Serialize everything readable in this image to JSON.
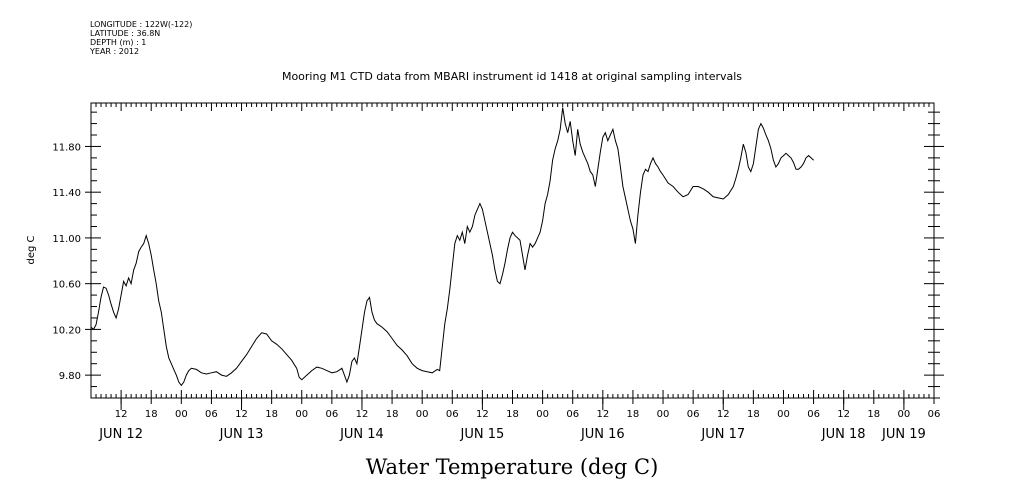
{
  "header": {
    "lines": [
      "LONGITUDE : 122W(-122)",
      "LATITUDE : 36.8N",
      "DEPTH (m) : 1",
      "YEAR : 2012"
    ]
  },
  "chart_data": {
    "type": "line",
    "title": "Mooring M1 CTD data from MBARI instrument id 1418 at original sampling intervals",
    "bottom_title": "Water Temperature (deg C)",
    "ylabel": "deg C",
    "xlabel": "",
    "ylim": [
      9.6,
      12.18
    ],
    "yticks": [
      9.8,
      10.2,
      10.6,
      11.0,
      11.4,
      11.8
    ],
    "ytick_labels": [
      "9.80",
      "10.20",
      "10.60",
      "11.00",
      "11.40",
      "11.80"
    ],
    "xlim_hours_from_jun11_00": [
      30,
      198
    ],
    "xticks": [
      {
        "t": 36,
        "label": "12"
      },
      {
        "t": 42,
        "label": "18"
      },
      {
        "t": 48,
        "label": "00"
      },
      {
        "t": 54,
        "label": "06"
      },
      {
        "t": 60,
        "label": "12"
      },
      {
        "t": 66,
        "label": "18"
      },
      {
        "t": 72,
        "label": "00"
      },
      {
        "t": 78,
        "label": "06"
      },
      {
        "t": 84,
        "label": "12"
      },
      {
        "t": 90,
        "label": "18"
      },
      {
        "t": 96,
        "label": "00"
      },
      {
        "t": 102,
        "label": "06"
      },
      {
        "t": 108,
        "label": "12"
      },
      {
        "t": 114,
        "label": "18"
      },
      {
        "t": 120,
        "label": "00"
      },
      {
        "t": 126,
        "label": "06"
      },
      {
        "t": 132,
        "label": "12"
      },
      {
        "t": 138,
        "label": "18"
      },
      {
        "t": 144,
        "label": "00"
      },
      {
        "t": 150,
        "label": "06"
      },
      {
        "t": 156,
        "label": "12"
      },
      {
        "t": 162,
        "label": "18"
      },
      {
        "t": 168,
        "label": "00"
      },
      {
        "t": 174,
        "label": "06"
      },
      {
        "t": 180,
        "label": "12"
      },
      {
        "t": 186,
        "label": "18"
      },
      {
        "t": 192,
        "label": "00"
      },
      {
        "t": 198,
        "label": "06"
      }
    ],
    "day_labels": [
      {
        "t": 36,
        "label": "JUN 12"
      },
      {
        "t": 60,
        "label": "JUN 13"
      },
      {
        "t": 84,
        "label": "JUN 14"
      },
      {
        "t": 108,
        "label": "JUN 15"
      },
      {
        "t": 132,
        "label": "JUN 16"
      },
      {
        "t": 156,
        "label": "JUN 17"
      },
      {
        "t": 180,
        "label": "JUN 18"
      },
      {
        "t": 192,
        "label": "JUN 19"
      }
    ],
    "series": [
      {
        "points": [
          [
            30,
            10.22
          ],
          [
            30.5,
            10.2
          ],
          [
            31,
            10.24
          ],
          [
            31.5,
            10.35
          ],
          [
            32,
            10.48
          ],
          [
            32.5,
            10.57
          ],
          [
            33,
            10.56
          ],
          [
            33.5,
            10.5
          ],
          [
            34,
            10.42
          ],
          [
            34.5,
            10.35
          ],
          [
            35,
            10.3
          ],
          [
            35.5,
            10.38
          ],
          [
            36,
            10.5
          ],
          [
            36.5,
            10.62
          ],
          [
            37,
            10.58
          ],
          [
            37.5,
            10.65
          ],
          [
            38,
            10.6
          ],
          [
            38.5,
            10.72
          ],
          [
            39,
            10.78
          ],
          [
            39.5,
            10.88
          ],
          [
            40,
            10.92
          ],
          [
            40.5,
            10.95
          ],
          [
            41,
            11.02
          ],
          [
            41.5,
            10.95
          ],
          [
            42,
            10.85
          ],
          [
            42.5,
            10.72
          ],
          [
            43,
            10.6
          ],
          [
            43.5,
            10.45
          ],
          [
            44,
            10.35
          ],
          [
            44.5,
            10.2
          ],
          [
            45,
            10.05
          ],
          [
            45.5,
            9.95
          ],
          [
            46,
            9.9
          ],
          [
            46.5,
            9.85
          ],
          [
            47,
            9.8
          ],
          [
            47.5,
            9.74
          ],
          [
            48,
            9.71
          ],
          [
            48.5,
            9.74
          ],
          [
            49,
            9.8
          ],
          [
            49.5,
            9.84
          ],
          [
            50,
            9.86
          ],
          [
            51,
            9.85
          ],
          [
            52,
            9.82
          ],
          [
            53,
            9.81
          ],
          [
            54,
            9.82
          ],
          [
            55,
            9.83
          ],
          [
            56,
            9.8
          ],
          [
            57,
            9.79
          ],
          [
            58,
            9.82
          ],
          [
            59,
            9.86
          ],
          [
            60,
            9.92
          ],
          [
            61,
            9.98
          ],
          [
            62,
            10.05
          ],
          [
            63,
            10.12
          ],
          [
            64,
            10.17
          ],
          [
            65,
            10.16
          ],
          [
            66,
            10.1
          ],
          [
            67,
            10.07
          ],
          [
            68,
            10.03
          ],
          [
            69,
            9.98
          ],
          [
            70,
            9.93
          ],
          [
            71,
            9.86
          ],
          [
            71.5,
            9.78
          ],
          [
            72,
            9.76
          ],
          [
            73,
            9.8
          ],
          [
            74,
            9.84
          ],
          [
            75,
            9.87
          ],
          [
            76,
            9.86
          ],
          [
            77,
            9.84
          ],
          [
            78,
            9.82
          ],
          [
            79,
            9.83
          ],
          [
            80,
            9.86
          ],
          [
            80.5,
            9.8
          ],
          [
            81,
            9.74
          ],
          [
            81.5,
            9.8
          ],
          [
            82,
            9.92
          ],
          [
            82.5,
            9.95
          ],
          [
            83,
            9.9
          ],
          [
            83.5,
            10.05
          ],
          [
            84,
            10.2
          ],
          [
            84.5,
            10.35
          ],
          [
            85,
            10.45
          ],
          [
            85.5,
            10.48
          ],
          [
            86,
            10.35
          ],
          [
            86.5,
            10.28
          ],
          [
            87,
            10.25
          ],
          [
            88,
            10.22
          ],
          [
            89,
            10.18
          ],
          [
            90,
            10.12
          ],
          [
            91,
            10.06
          ],
          [
            92,
            10.02
          ],
          [
            93,
            9.97
          ],
          [
            94,
            9.9
          ],
          [
            95,
            9.86
          ],
          [
            96,
            9.84
          ],
          [
            97,
            9.83
          ],
          [
            98,
            9.82
          ],
          [
            99,
            9.85
          ],
          [
            99.5,
            9.84
          ],
          [
            100,
            10.05
          ],
          [
            100.5,
            10.25
          ],
          [
            101,
            10.38
          ],
          [
            101.5,
            10.55
          ],
          [
            102,
            10.75
          ],
          [
            102.5,
            10.95
          ],
          [
            103,
            11.02
          ],
          [
            103.5,
            10.98
          ],
          [
            104,
            11.05
          ],
          [
            104.5,
            10.95
          ],
          [
            105,
            11.1
          ],
          [
            105.5,
            11.05
          ],
          [
            106,
            11.1
          ],
          [
            106.5,
            11.2
          ],
          [
            107,
            11.25
          ],
          [
            107.5,
            11.3
          ],
          [
            108,
            11.25
          ],
          [
            108.5,
            11.15
          ],
          [
            109,
            11.05
          ],
          [
            109.5,
            10.95
          ],
          [
            110,
            10.85
          ],
          [
            110.5,
            10.72
          ],
          [
            111,
            10.62
          ],
          [
            111.5,
            10.6
          ],
          [
            112,
            10.68
          ],
          [
            112.5,
            10.78
          ],
          [
            113,
            10.9
          ],
          [
            113.5,
            11.0
          ],
          [
            114,
            11.05
          ],
          [
            114.5,
            11.02
          ],
          [
            115,
            11.0
          ],
          [
            115.5,
            10.98
          ],
          [
            116,
            10.85
          ],
          [
            116.5,
            10.72
          ],
          [
            117,
            10.85
          ],
          [
            117.5,
            10.95
          ],
          [
            118,
            10.92
          ],
          [
            118.5,
            10.95
          ],
          [
            119,
            11.0
          ],
          [
            119.5,
            11.05
          ],
          [
            120,
            11.15
          ],
          [
            120.5,
            11.3
          ],
          [
            121,
            11.38
          ],
          [
            121.5,
            11.5
          ],
          [
            122,
            11.68
          ],
          [
            122.5,
            11.78
          ],
          [
            123,
            11.85
          ],
          [
            123.5,
            11.95
          ],
          [
            124,
            12.14
          ],
          [
            124.5,
            12.0
          ],
          [
            125,
            11.92
          ],
          [
            125.5,
            12.02
          ],
          [
            126,
            11.85
          ],
          [
            126.5,
            11.72
          ],
          [
            127,
            11.95
          ],
          [
            127.5,
            11.82
          ],
          [
            128,
            11.75
          ],
          [
            128.5,
            11.7
          ],
          [
            129,
            11.65
          ],
          [
            129.5,
            11.58
          ],
          [
            130,
            11.55
          ],
          [
            130.5,
            11.45
          ],
          [
            131,
            11.6
          ],
          [
            131.5,
            11.75
          ],
          [
            132,
            11.88
          ],
          [
            132.5,
            11.92
          ],
          [
            133,
            11.85
          ],
          [
            133.5,
            11.9
          ],
          [
            134,
            11.95
          ],
          [
            134.5,
            11.85
          ],
          [
            135,
            11.78
          ],
          [
            135.5,
            11.62
          ],
          [
            136,
            11.45
          ],
          [
            136.5,
            11.35
          ],
          [
            137,
            11.25
          ],
          [
            137.5,
            11.15
          ],
          [
            138,
            11.08
          ],
          [
            138.5,
            10.95
          ],
          [
            139,
            11.2
          ],
          [
            139.5,
            11.4
          ],
          [
            140,
            11.55
          ],
          [
            140.5,
            11.6
          ],
          [
            141,
            11.58
          ],
          [
            141.5,
            11.65
          ],
          [
            142,
            11.7
          ],
          [
            142.5,
            11.65
          ],
          [
            143,
            11.62
          ],
          [
            143.5,
            11.58
          ],
          [
            144,
            11.55
          ],
          [
            145,
            11.48
          ],
          [
            146,
            11.45
          ],
          [
            147,
            11.4
          ],
          [
            148,
            11.36
          ],
          [
            149,
            11.38
          ],
          [
            150,
            11.45
          ],
          [
            151,
            11.45
          ],
          [
            152,
            11.43
          ],
          [
            153,
            11.4
          ],
          [
            154,
            11.36
          ],
          [
            155,
            11.35
          ],
          [
            156,
            11.34
          ],
          [
            157,
            11.38
          ],
          [
            158,
            11.45
          ],
          [
            158.5,
            11.52
          ],
          [
            159,
            11.6
          ],
          [
            159.5,
            11.7
          ],
          [
            160,
            11.82
          ],
          [
            160.5,
            11.75
          ],
          [
            161,
            11.62
          ],
          [
            161.5,
            11.58
          ],
          [
            162,
            11.65
          ],
          [
            162.5,
            11.8
          ],
          [
            163,
            11.95
          ],
          [
            163.5,
            12.0
          ],
          [
            164,
            11.96
          ],
          [
            164.5,
            11.9
          ],
          [
            165,
            11.85
          ],
          [
            165.5,
            11.78
          ],
          [
            166,
            11.68
          ],
          [
            166.5,
            11.62
          ],
          [
            167,
            11.65
          ],
          [
            167.5,
            11.7
          ],
          [
            168,
            11.72
          ],
          [
            168.5,
            11.74
          ],
          [
            169,
            11.72
          ],
          [
            169.5,
            11.7
          ],
          [
            170,
            11.66
          ],
          [
            170.5,
            11.6
          ],
          [
            171,
            11.6
          ],
          [
            171.5,
            11.62
          ],
          [
            172,
            11.65
          ],
          [
            172.5,
            11.7
          ],
          [
            173,
            11.72
          ],
          [
            173.5,
            11.7
          ],
          [
            174,
            11.68
          ]
        ]
      }
    ],
    "grid": false,
    "legend": "none"
  }
}
